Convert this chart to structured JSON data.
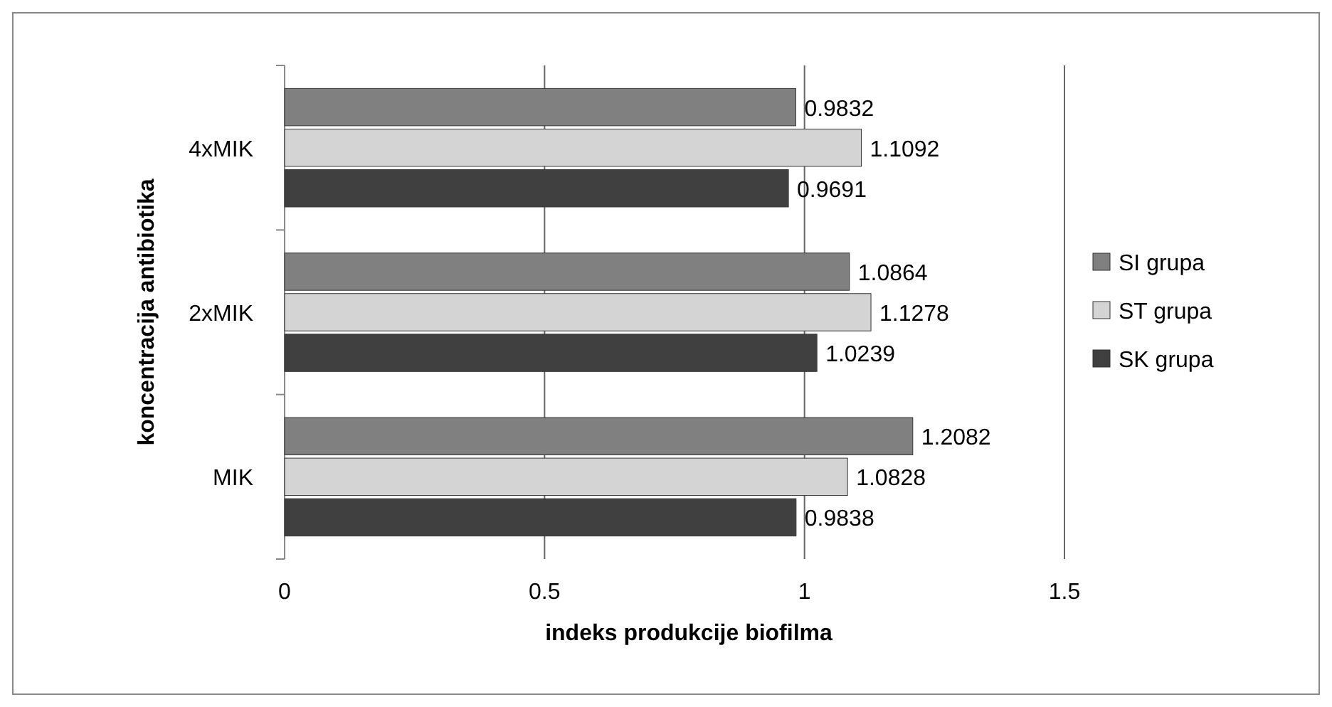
{
  "chart_data": {
    "type": "bar",
    "orientation": "horizontal",
    "xlabel": "indeks produkcije biofilma",
    "ylabel": "koncentracija antibiotika",
    "categories": [
      "4xMIK",
      "2xMIK",
      "MIK"
    ],
    "series": [
      {
        "name": "SI grupa",
        "color": "#808080",
        "values": [
          0.9832,
          1.0864,
          1.2082
        ]
      },
      {
        "name": "ST grupa",
        "color": "#d4d4d4",
        "values": [
          1.1092,
          1.1278,
          1.0828
        ]
      },
      {
        "name": "SK grupa",
        "color": "#404040",
        "values": [
          0.9691,
          1.0239,
          0.9838
        ]
      }
    ],
    "xlim": [
      0,
      1.5
    ],
    "xticks": [
      0,
      0.5,
      1,
      1.5
    ],
    "grid": "x",
    "legend": "right",
    "data_labels": true
  }
}
